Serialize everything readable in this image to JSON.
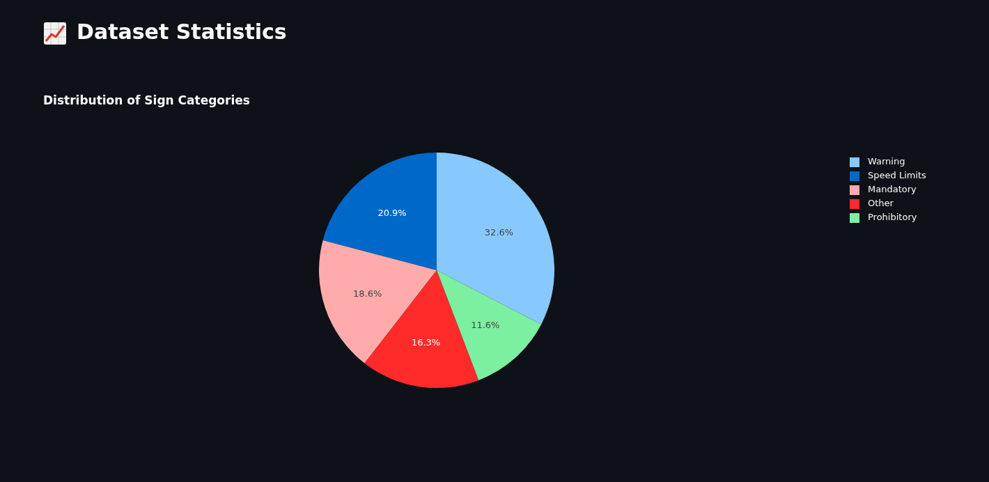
{
  "chart_data": {
    "type": "pie",
    "title": "Dataset Statistics",
    "subtitle": "Distribution of Sign Categories",
    "categories": [
      "Warning",
      "Speed Limits",
      "Mandatory",
      "Other",
      "Prohibitory"
    ],
    "values": [
      32.6,
      20.9,
      18.6,
      16.3,
      11.6
    ],
    "value_labels": [
      "32.6%",
      "20.9%",
      "18.6%",
      "16.3%",
      "11.6%"
    ],
    "colors": [
      "#87c9ff",
      "#0068c9",
      "#ffabab",
      "#ff2b2b",
      "#7defa1"
    ],
    "legend": "top right"
  }
}
